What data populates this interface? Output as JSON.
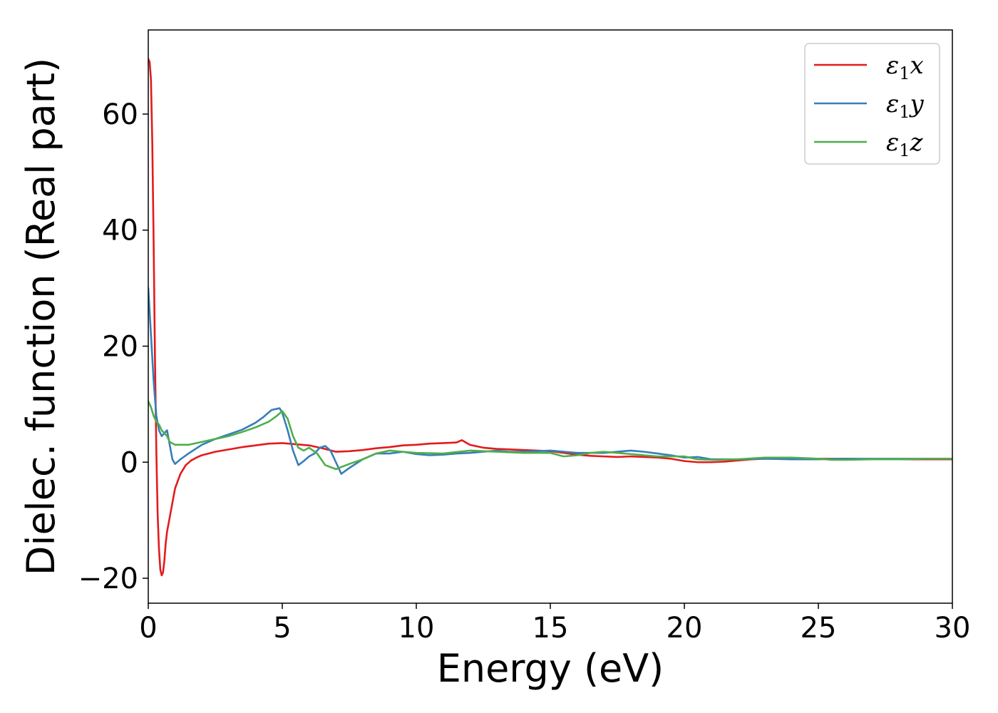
{
  "chart_data": {
    "type": "line",
    "title": "",
    "xlabel": "Energy (eV)",
    "ylabel": "Dielec. function (Real part)",
    "xlim": [
      0,
      30
    ],
    "ylim": [
      -24.3,
      74.5
    ],
    "xticks": [
      0,
      5,
      10,
      15,
      20,
      25,
      30
    ],
    "xtick_labels": [
      "0",
      "5",
      "10",
      "15",
      "20",
      "25",
      "30"
    ],
    "yticks": [
      -20,
      0,
      20,
      40,
      60
    ],
    "ytick_labels": [
      "−20",
      "0",
      "20",
      "40",
      "60"
    ],
    "grid": false,
    "legend_position": "top-right",
    "series": [
      {
        "name": "ε₁x",
        "name_main": "ε",
        "name_sub": "1",
        "name_tail": "x",
        "color": "#e41a1c",
        "x": [
          0,
          0.05,
          0.1,
          0.15,
          0.2,
          0.25,
          0.3,
          0.35,
          0.4,
          0.45,
          0.5,
          0.55,
          0.6,
          0.65,
          0.7,
          0.8,
          0.9,
          1.0,
          1.2,
          1.4,
          1.6,
          1.8,
          2.0,
          2.5,
          3.0,
          3.5,
          4.0,
          4.5,
          5.0,
          5.5,
          6.0,
          6.5,
          7.0,
          7.5,
          8.0,
          8.5,
          9.0,
          9.5,
          10.0,
          10.5,
          11.0,
          11.5,
          11.7,
          12.0,
          12.5,
          13.0,
          13.5,
          14.0,
          14.5,
          15.0,
          15.5,
          16.0,
          16.5,
          17.0,
          17.5,
          18.0,
          18.5,
          19.0,
          19.5,
          20.0,
          20.5,
          21.0,
          21.5,
          22.0,
          22.5,
          23.0,
          24.0,
          25.0,
          26.0,
          27.0,
          28.0,
          29.0,
          30.0
        ],
        "y": [
          69.5,
          69.0,
          66.0,
          55.0,
          38.0,
          18.0,
          2.0,
          -9.0,
          -15.0,
          -18.5,
          -19.5,
          -19.0,
          -17.0,
          -14.0,
          -12.0,
          -9.5,
          -7.0,
          -4.5,
          -2.0,
          -0.5,
          0.3,
          0.8,
          1.2,
          1.8,
          2.2,
          2.6,
          2.9,
          3.2,
          3.3,
          3.1,
          2.9,
          2.4,
          1.8,
          1.9,
          2.1,
          2.4,
          2.6,
          2.9,
          3.0,
          3.2,
          3.3,
          3.4,
          3.8,
          3.0,
          2.5,
          2.3,
          2.2,
          2.1,
          2.0,
          1.9,
          1.6,
          1.3,
          1.1,
          1.0,
          0.9,
          1.0,
          0.9,
          0.8,
          0.6,
          0.2,
          0.0,
          0.0,
          0.1,
          0.3,
          0.5,
          0.6,
          0.6,
          0.6,
          0.6,
          0.5,
          0.5,
          0.5,
          0.5
        ]
      },
      {
        "name": "ε₁y",
        "name_main": "ε",
        "name_sub": "1",
        "name_tail": "y",
        "color": "#377eb8",
        "x": [
          0,
          0.1,
          0.2,
          0.3,
          0.4,
          0.5,
          0.6,
          0.7,
          0.8,
          0.9,
          1.0,
          1.2,
          1.5,
          2.0,
          2.5,
          3.0,
          3.5,
          4.0,
          4.3,
          4.6,
          4.9,
          5.0,
          5.2,
          5.4,
          5.6,
          5.8,
          6.0,
          6.2,
          6.4,
          6.6,
          6.8,
          7.0,
          7.2,
          7.5,
          8.0,
          8.5,
          9.0,
          9.5,
          10.0,
          10.5,
          11.0,
          11.5,
          12.0,
          12.5,
          13.0,
          13.5,
          14.0,
          15.0,
          16.0,
          17.0,
          18.0,
          18.5,
          19.0,
          19.5,
          20.0,
          20.5,
          21.0,
          22.0,
          23.0,
          24.0,
          25.0,
          26.0,
          27.0,
          28.0,
          29.0,
          30.0
        ],
        "y": [
          30.0,
          22.0,
          14.0,
          8.0,
          5.5,
          4.5,
          5.0,
          5.5,
          3.0,
          0.5,
          -0.3,
          0.5,
          1.5,
          3.0,
          4.0,
          4.8,
          5.6,
          6.8,
          7.8,
          9.0,
          9.3,
          8.5,
          5.5,
          2.0,
          -0.5,
          0.2,
          1.0,
          1.5,
          2.5,
          2.8,
          2.0,
          0.0,
          -2.0,
          -1.0,
          0.5,
          1.5,
          1.5,
          1.8,
          1.4,
          1.2,
          1.3,
          1.5,
          1.6,
          1.8,
          2.0,
          1.8,
          1.8,
          2.0,
          1.6,
          1.6,
          2.0,
          1.8,
          1.5,
          1.2,
          0.8,
          0.9,
          0.5,
          0.5,
          0.6,
          0.5,
          0.5,
          0.6,
          0.6,
          0.6,
          0.6,
          0.6
        ]
      },
      {
        "name": "ε₁z",
        "name_main": "ε",
        "name_sub": "1",
        "name_tail": "z",
        "color": "#4daf4a",
        "x": [
          0,
          0.1,
          0.2,
          0.3,
          0.4,
          0.5,
          0.6,
          0.7,
          0.8,
          1.0,
          1.2,
          1.5,
          2.0,
          2.5,
          3.0,
          3.5,
          4.0,
          4.5,
          4.8,
          5.0,
          5.2,
          5.4,
          5.6,
          5.8,
          6.0,
          6.3,
          6.6,
          7.0,
          7.5,
          8.0,
          8.5,
          9.0,
          9.5,
          10.0,
          11.0,
          12.0,
          13.0,
          14.0,
          15.0,
          15.5,
          16.0,
          16.5,
          17.0,
          17.5,
          18.0,
          18.5,
          19.0,
          19.5,
          20.0,
          20.5,
          21.0,
          22.0,
          23.0,
          24.0,
          25.0,
          25.5,
          26.0,
          27.0,
          28.0,
          29.0,
          30.0
        ],
        "y": [
          10.5,
          9.5,
          8.0,
          7.0,
          6.5,
          5.5,
          5.0,
          4.5,
          3.5,
          3.0,
          3.0,
          3.0,
          3.5,
          4.0,
          4.5,
          5.2,
          6.0,
          7.0,
          8.0,
          8.8,
          7.5,
          4.5,
          2.5,
          2.0,
          2.5,
          1.5,
          -0.5,
          -1.2,
          -0.3,
          0.5,
          1.5,
          2.0,
          1.8,
          1.6,
          1.5,
          2.0,
          1.8,
          1.6,
          1.6,
          1.0,
          1.2,
          1.6,
          1.8,
          1.6,
          1.4,
          1.2,
          1.0,
          1.0,
          1.0,
          0.5,
          0.4,
          0.5,
          0.8,
          0.8,
          0.6,
          0.4,
          0.4,
          0.5,
          0.5,
          0.6,
          0.6
        ]
      }
    ]
  }
}
